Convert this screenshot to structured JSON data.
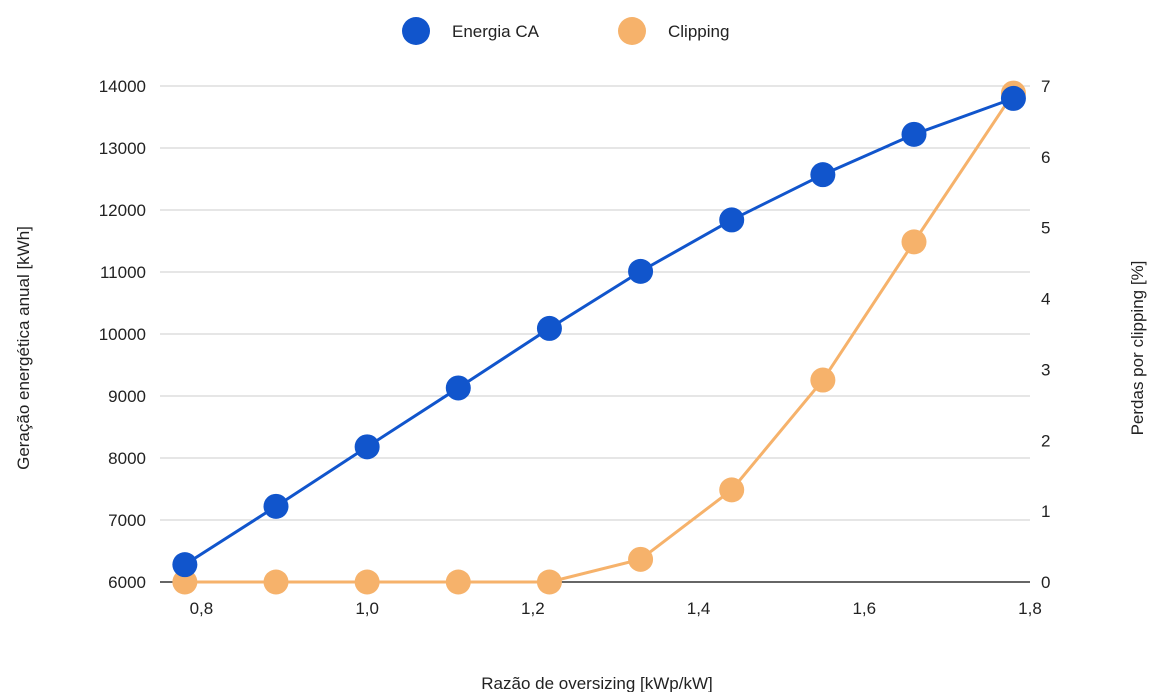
{
  "chart_data": {
    "type": "line",
    "x": [
      0.78,
      0.89,
      1.0,
      1.11,
      1.22,
      1.33,
      1.44,
      1.55,
      1.66,
      1.78
    ],
    "x_ticks": [
      0.8,
      1.0,
      1.2,
      1.4,
      1.6,
      1.8
    ],
    "x_tick_labels": [
      "0,8",
      "1,0",
      "1,2",
      "1,4",
      "1,6",
      "1,8"
    ],
    "xlim": [
      0.75,
      1.8
    ],
    "xlabel": "Razão de oversizing [kWp/kW]",
    "ylabel": "Geração energética anual [kWh]",
    "ylim": [
      6000,
      14000
    ],
    "y_ticks": [
      6000,
      7000,
      8000,
      9000,
      10000,
      11000,
      12000,
      13000,
      14000
    ],
    "y2label": "Perdas por clipping [%]",
    "y2lim": [
      0,
      7
    ],
    "y2_ticks": [
      0,
      1,
      2,
      3,
      4,
      5,
      6,
      7
    ],
    "grid": true,
    "legend_position": "top",
    "series": [
      {
        "name": "Energia CA",
        "axis": "left",
        "color": "#1155cc",
        "values": [
          6280,
          7220,
          8180,
          9130,
          10090,
          11010,
          11840,
          12570,
          13220,
          13800
        ]
      },
      {
        "name": "Clipping",
        "axis": "right",
        "color": "#f6b26b",
        "values": [
          0.0,
          0.0,
          0.0,
          0.0,
          0.0,
          0.32,
          1.3,
          2.85,
          4.8,
          6.9
        ]
      }
    ]
  }
}
